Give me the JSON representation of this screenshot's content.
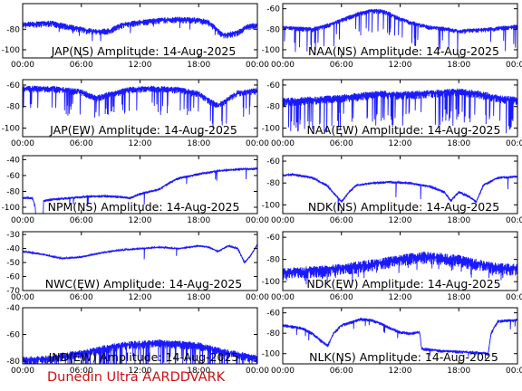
{
  "footer": "Dunedin Ultra AARDDVARK",
  "series_color": "#1a1aff",
  "chart_data": [
    {
      "type": "line",
      "title": "JAP(NS) Amplitude: 14-Aug-2025",
      "x_ticks": [
        "00:00",
        "06:00",
        "12:00",
        "18:00",
        "00:00"
      ],
      "x_range_hours": [
        0,
        24
      ],
      "y_ticks": [
        -80,
        -100
      ],
      "ylim": [
        -108,
        -55
      ],
      "profile": [
        [
          0,
          -75
        ],
        [
          3,
          -74
        ],
        [
          5,
          -78
        ],
        [
          6.5,
          -81
        ],
        [
          8,
          -82
        ],
        [
          9,
          -81
        ],
        [
          10,
          -76
        ],
        [
          12,
          -73
        ],
        [
          14,
          -71
        ],
        [
          16,
          -70
        ],
        [
          18,
          -71
        ],
        [
          19,
          -73
        ],
        [
          19.6,
          -78
        ],
        [
          20.5,
          -86
        ],
        [
          22,
          -83
        ],
        [
          23,
          -77
        ],
        [
          24,
          -76
        ]
      ],
      "noise": 4,
      "drops": 10,
      "drop_depth": 8,
      "gaps": []
    },
    {
      "type": "line",
      "title": "NAA(NS) Amplitude: 14-Aug-2025",
      "x_ticks": [
        "00:00",
        "06:00",
        "12:00",
        "18:00",
        "00:00"
      ],
      "x_range_hours": [
        0,
        24
      ],
      "y_ticks": [
        -60,
        -80,
        -100
      ],
      "ylim": [
        -108,
        -55
      ],
      "profile": [
        [
          0,
          -78
        ],
        [
          3,
          -80
        ],
        [
          5,
          -75
        ],
        [
          6.5,
          -69
        ],
        [
          8,
          -64
        ],
        [
          9,
          -62
        ],
        [
          10,
          -62
        ],
        [
          11,
          -65
        ],
        [
          12,
          -70
        ],
        [
          13,
          -73
        ],
        [
          15,
          -78
        ],
        [
          17,
          -80
        ],
        [
          18,
          -82
        ],
        [
          19,
          -81
        ],
        [
          21,
          -80
        ],
        [
          22,
          -79
        ],
        [
          24,
          -77
        ]
      ],
      "noise": 3,
      "drops": 45,
      "drop_depth": 22,
      "gaps": []
    },
    {
      "type": "line",
      "title": "JAP(EW) Amplitude: 14-Aug-2025",
      "x_ticks": [
        "00:00",
        "06:00",
        "12:00",
        "18:00",
        "00:00"
      ],
      "x_range_hours": [
        0,
        24
      ],
      "y_ticks": [
        -60,
        -80,
        -100
      ],
      "ylim": [
        -108,
        -55
      ],
      "profile": [
        [
          0,
          -63
        ],
        [
          3,
          -63
        ],
        [
          6,
          -66
        ],
        [
          7.5,
          -72
        ],
        [
          9,
          -68
        ],
        [
          11,
          -64
        ],
        [
          13,
          -63
        ],
        [
          16,
          -64
        ],
        [
          18,
          -68
        ],
        [
          19,
          -74
        ],
        [
          20,
          -79
        ],
        [
          21,
          -73
        ],
        [
          22,
          -67
        ],
        [
          24,
          -65
        ]
      ],
      "noise": 4,
      "drops": 70,
      "drop_depth": 22,
      "gaps": []
    },
    {
      "type": "line",
      "title": "NAA(EW) Amplitude: 14-Aug-2025",
      "x_ticks": [
        "00:00",
        "06:00",
        "12:00",
        "18:00",
        "00:00"
      ],
      "x_range_hours": [
        0,
        24
      ],
      "y_ticks": [
        -60,
        -80,
        -100
      ],
      "ylim": [
        -108,
        -55
      ],
      "profile": [
        [
          0,
          -75
        ],
        [
          4,
          -73
        ],
        [
          8,
          -70
        ],
        [
          10,
          -68
        ],
        [
          12,
          -69
        ],
        [
          16,
          -67
        ],
        [
          18,
          -66
        ],
        [
          20,
          -68
        ],
        [
          22,
          -72
        ],
        [
          24,
          -74
        ]
      ],
      "noise": 5,
      "drops": 95,
      "drop_depth": 28,
      "gaps": []
    },
    {
      "type": "line",
      "title": "NPM(NS) Amplitude: 14-Aug-2025",
      "x_ticks": [
        "00:00",
        "06:00",
        "12:00",
        "18:00",
        "00:00"
      ],
      "x_range_hours": [
        0,
        24
      ],
      "y_ticks": [
        -40,
        -60,
        -80,
        -100
      ],
      "ylim": [
        -108,
        -35
      ],
      "profile": [
        [
          0,
          -88
        ],
        [
          1,
          -88
        ],
        [
          1.3,
          -100
        ],
        [
          2,
          -92
        ],
        [
          3,
          -90
        ],
        [
          5,
          -88
        ],
        [
          7,
          -86
        ],
        [
          9,
          -86
        ],
        [
          10,
          -87
        ],
        [
          11,
          -88
        ],
        [
          12,
          -83
        ],
        [
          13,
          -80
        ],
        [
          14,
          -77
        ],
        [
          15,
          -69
        ],
        [
          16,
          -63
        ],
        [
          18,
          -58
        ],
        [
          20,
          -54
        ],
        [
          22,
          -52
        ],
        [
          24,
          -51
        ]
      ],
      "noise": 2,
      "drops": 9,
      "drop_depth": 14,
      "gaps": [
        [
          1.3,
          2.1
        ]
      ]
    },
    {
      "type": "line",
      "title": "NDK(NS) Amplitude: 14-Aug-2025",
      "x_ticks": [
        "00:00",
        "06:00",
        "12:00",
        "18:00",
        "00:00"
      ],
      "x_range_hours": [
        0,
        24
      ],
      "y_ticks": [
        -60,
        -80,
        -100
      ],
      "ylim": [
        -108,
        -55
      ],
      "profile": [
        [
          0,
          -73
        ],
        [
          1,
          -72
        ],
        [
          3,
          -75
        ],
        [
          4.5,
          -82
        ],
        [
          5.5,
          -92
        ],
        [
          6,
          -97
        ],
        [
          6.8,
          -88
        ],
        [
          7.5,
          -82
        ],
        [
          9,
          -80
        ],
        [
          11,
          -79
        ],
        [
          13,
          -80
        ],
        [
          15,
          -83
        ],
        [
          16.5,
          -88
        ],
        [
          17.2,
          -96
        ],
        [
          18,
          -88
        ],
        [
          19,
          -92
        ],
        [
          19.8,
          -97
        ],
        [
          20.5,
          -82
        ],
        [
          22,
          -75
        ],
        [
          24,
          -74
        ]
      ],
      "noise": 1.5,
      "drops": 4,
      "drop_depth": 14,
      "gaps": []
    },
    {
      "type": "line",
      "title": "NWC(EW) Amplitude: 14-Aug-2025",
      "x_ticks": [
        "00:00",
        "06:00",
        "12:00",
        "18:00",
        "00:00"
      ],
      "x_range_hours": [
        0,
        24
      ],
      "y_ticks": [
        -30,
        -40,
        -50,
        -60,
        -70
      ],
      "ylim": [
        -70,
        -28
      ],
      "profile": [
        [
          0,
          -42
        ],
        [
          2,
          -44
        ],
        [
          4,
          -47
        ],
        [
          6,
          -46
        ],
        [
          8,
          -43
        ],
        [
          10,
          -41
        ],
        [
          12,
          -40
        ],
        [
          14,
          -39
        ],
        [
          16,
          -40
        ],
        [
          18,
          -38
        ],
        [
          19,
          -39
        ],
        [
          20,
          -42
        ],
        [
          21,
          -38
        ],
        [
          22,
          -40
        ],
        [
          22.7,
          -50
        ],
        [
          23.3,
          -45
        ],
        [
          24,
          -37
        ]
      ],
      "noise": 0.8,
      "drops": 2,
      "drop_depth": 10,
      "gaps": []
    },
    {
      "type": "line",
      "title": "NDK(EW) Amplitude: 14-Aug-2025",
      "x_ticks": [
        "00:00",
        "06:00",
        "12:00",
        "18:00",
        "00:00"
      ],
      "x_range_hours": [
        0,
        24
      ],
      "y_ticks": [
        -60,
        -80,
        -100
      ],
      "ylim": [
        -108,
        -55
      ],
      "profile": [
        [
          0,
          -92
        ],
        [
          3,
          -90
        ],
        [
          6,
          -88
        ],
        [
          9,
          -84
        ],
        [
          12,
          -80
        ],
        [
          14,
          -77
        ],
        [
          16,
          -78
        ],
        [
          18,
          -80
        ],
        [
          20,
          -84
        ],
        [
          22,
          -87
        ],
        [
          24,
          -88
        ]
      ],
      "noise": 7,
      "drops": 30,
      "drop_depth": 8,
      "gaps": []
    },
    {
      "type": "line",
      "title": "IND(EW) Amplitude: 14-Aug-2025",
      "x_ticks": [
        "00:00",
        "06:00",
        "12:00",
        "18:00",
        "00:00"
      ],
      "x_range_hours": [
        0,
        24
      ],
      "y_ticks": [
        -40,
        -60,
        -80
      ],
      "ylim": [
        -82,
        -40
      ],
      "profile": [
        [
          0,
          -79
        ],
        [
          3,
          -78
        ],
        [
          4,
          -76
        ],
        [
          6,
          -74
        ],
        [
          8,
          -71
        ],
        [
          10,
          -68
        ],
        [
          12,
          -67
        ],
        [
          14,
          -66
        ],
        [
          16,
          -67
        ],
        [
          18,
          -68
        ],
        [
          20,
          -72
        ],
        [
          22,
          -75
        ],
        [
          24,
          -78
        ]
      ],
      "noise": 4,
      "drops": 110,
      "drop_depth": 18,
      "gaps": []
    },
    {
      "type": "line",
      "title": "NLK(NS) Amplitude: 14-Aug-2025",
      "x_ticks": [
        "00:00",
        "06:00",
        "12:00",
        "18:00",
        "00:00"
      ],
      "x_range_hours": [
        0,
        24
      ],
      "y_ticks": [
        -60,
        -80,
        -100
      ],
      "ylim": [
        -110,
        -55
      ],
      "profile": [
        [
          0,
          -72
        ],
        [
          2,
          -75
        ],
        [
          3,
          -80
        ],
        [
          4,
          -88
        ],
        [
          4.6,
          -92
        ],
        [
          5.2,
          -80
        ],
        [
          6,
          -72
        ],
        [
          8,
          -66
        ],
        [
          9,
          -67
        ],
        [
          10,
          -70
        ],
        [
          11,
          -75
        ],
        [
          12,
          -79
        ],
        [
          13,
          -80
        ],
        [
          14,
          -79
        ],
        [
          14.2,
          -95
        ],
        [
          16,
          -97
        ],
        [
          18,
          -98
        ],
        [
          20,
          -99
        ],
        [
          21,
          -100
        ],
        [
          21.3,
          -80
        ],
        [
          22,
          -68
        ],
        [
          24,
          -67
        ]
      ],
      "noise": 2,
      "drops": 14,
      "drop_depth": 8,
      "gaps": []
    }
  ]
}
